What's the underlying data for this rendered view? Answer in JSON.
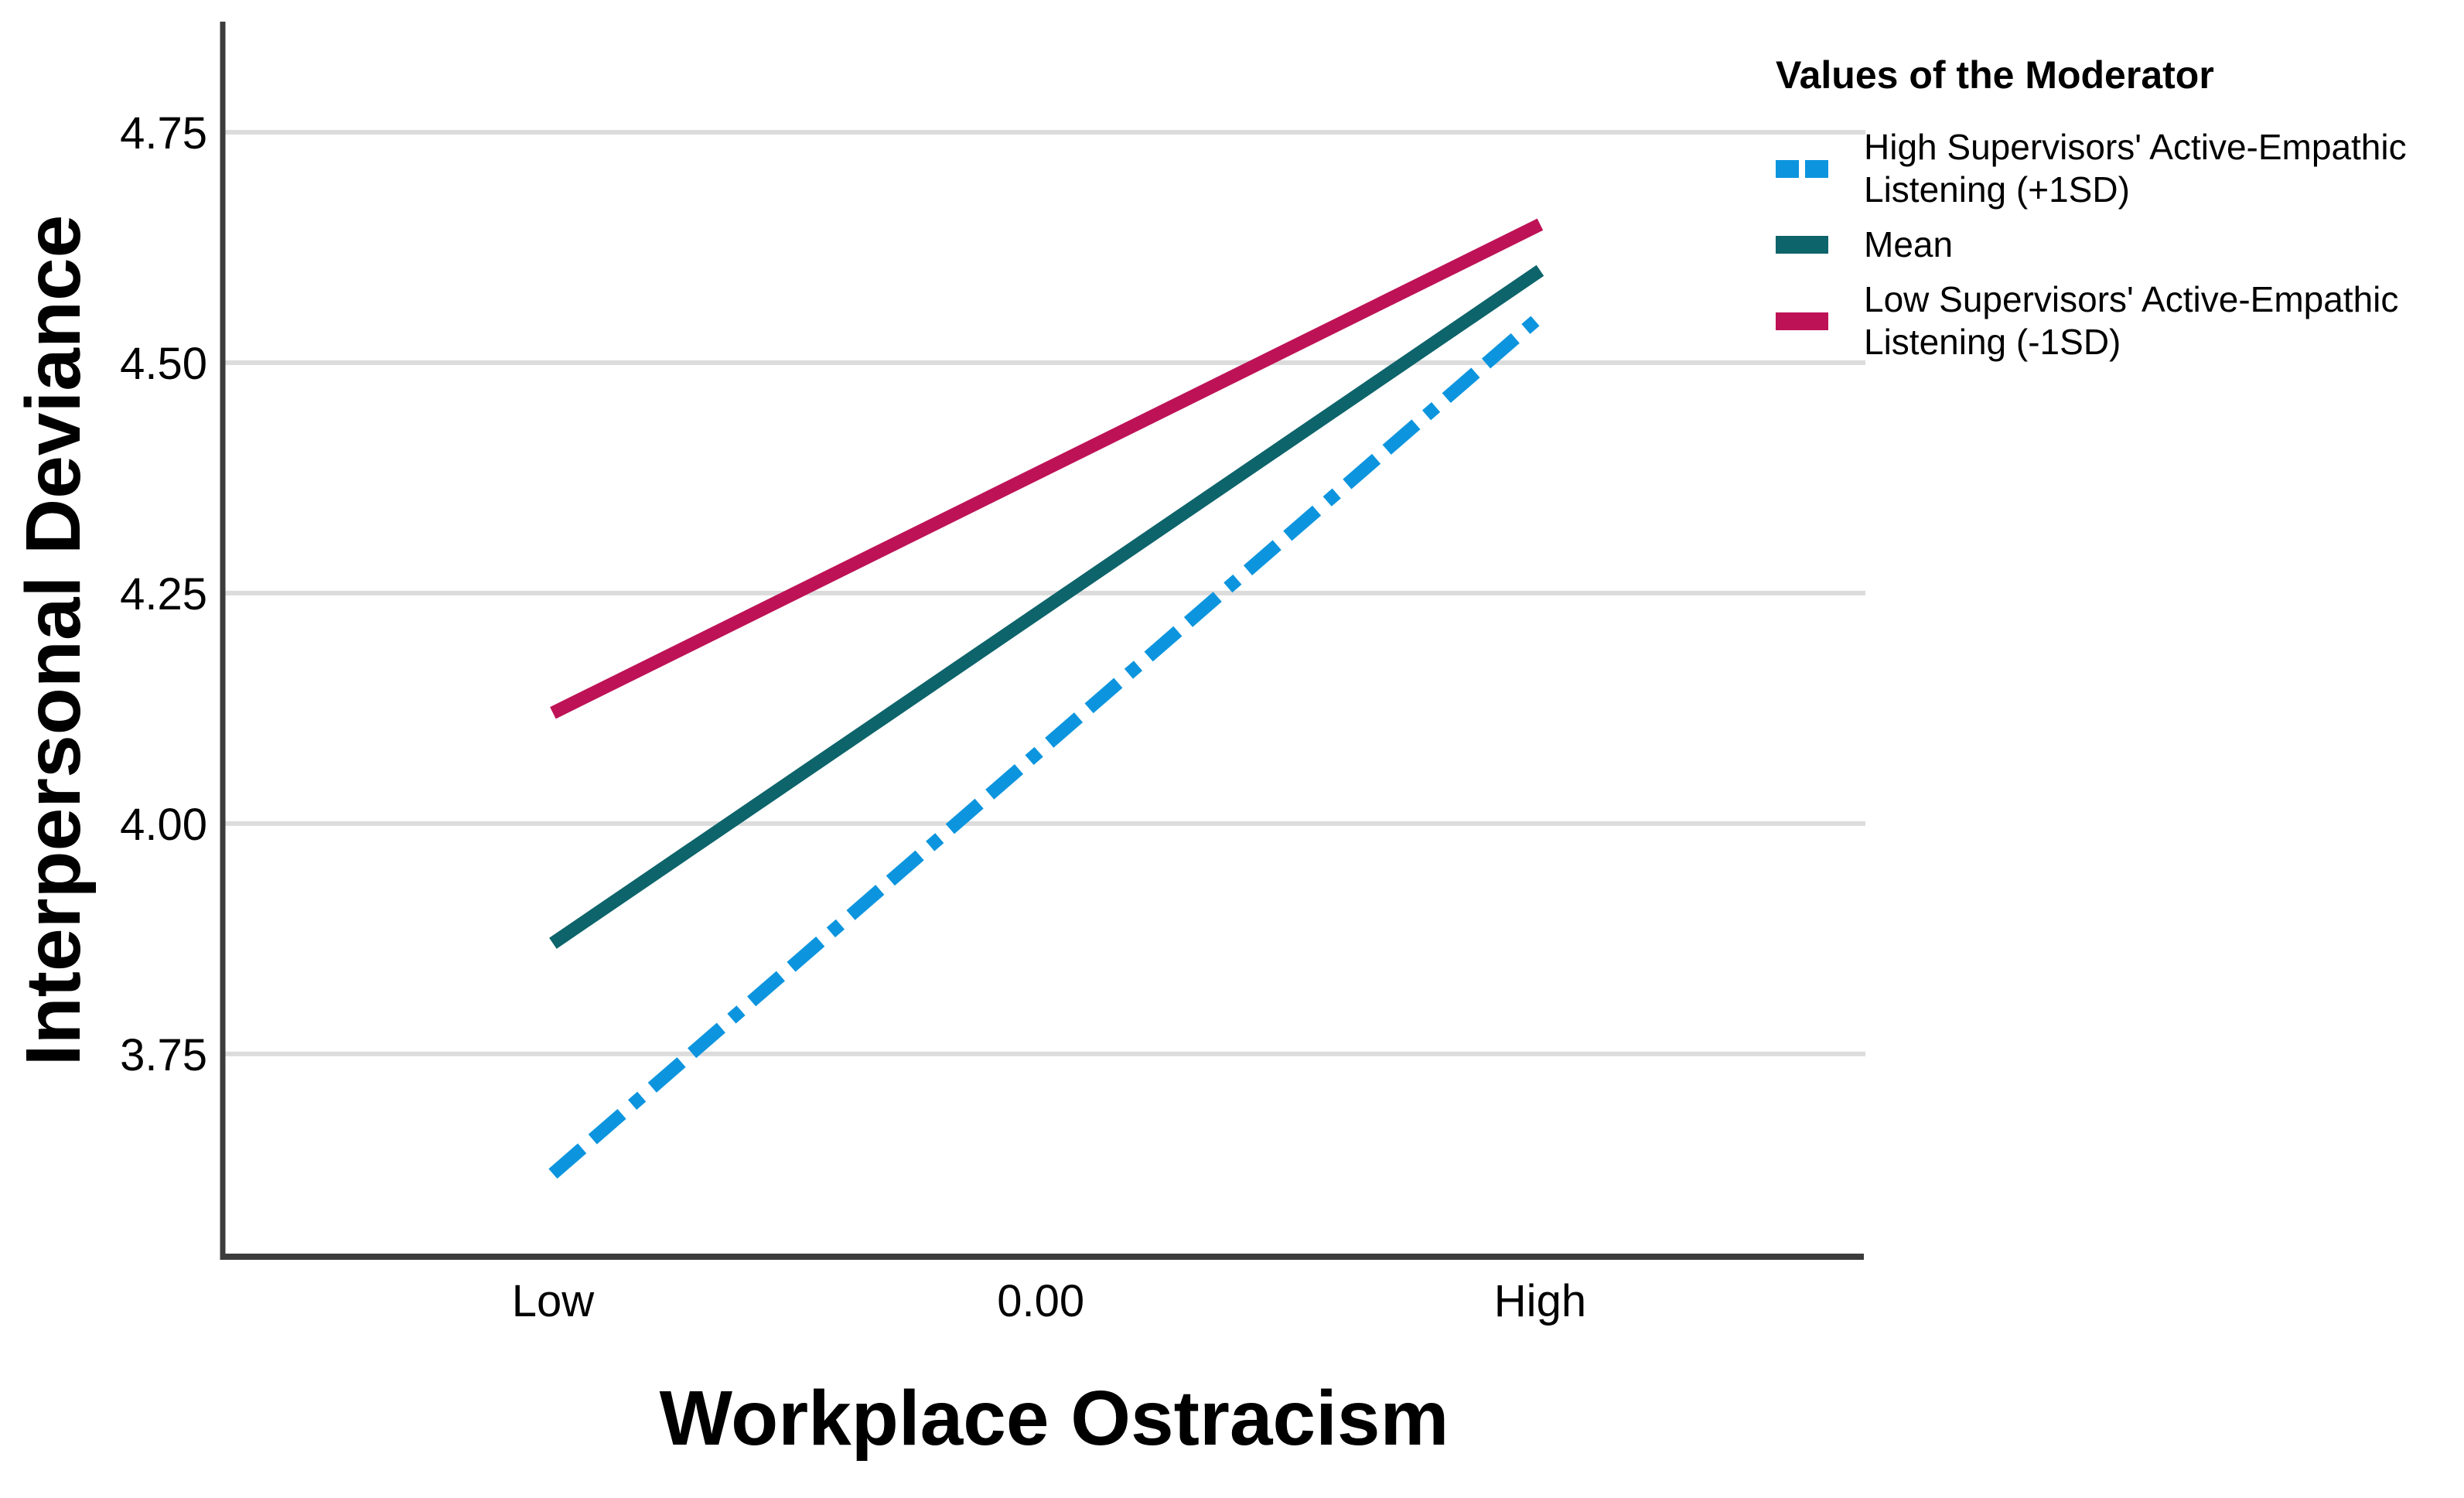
{
  "chart_data": {
    "type": "line",
    "title": "",
    "xlabel": "Workplace Ostracism",
    "ylabel": "Interpersonal Deviance",
    "categories": [
      "Low",
      "0.00",
      "High"
    ],
    "yticks": [
      3.75,
      4.0,
      4.25,
      4.5,
      4.75
    ],
    "ytick_labels": [
      "3.75",
      "4.00",
      "4.25",
      "4.50",
      "4.75"
    ],
    "ylim": [
      3.53,
      4.87
    ],
    "grid": "horizontal-only",
    "legend_position": "top-right-outside",
    "series": [
      {
        "name": "High Supervisors' Active-Empathic Listening (+1SD)",
        "legend_lines": [
          "High Supervisors' Active-Empathic",
          "Listening (+1SD)"
        ],
        "color": "#0C95DE",
        "line_style": "dash-dash-dot",
        "x": [
          "Low",
          "High"
        ],
        "values": [
          3.62,
          4.55
        ]
      },
      {
        "name": "Mean",
        "legend_lines": [
          "Mean"
        ],
        "color": "#0D646B",
        "line_style": "solid",
        "x": [
          "Low",
          "High"
        ],
        "values": [
          3.87,
          4.6
        ]
      },
      {
        "name": "Low Supervisors' Active-Empathic Listening (-1SD)",
        "legend_lines": [
          "Low Supervisors' Active-Empathic",
          "Listening (-1SD)"
        ],
        "color": "#BE1256",
        "line_style": "solid",
        "x": [
          "Low",
          "High"
        ],
        "values": [
          4.12,
          4.65
        ]
      }
    ]
  },
  "legend": {
    "title": "Values of the Moderator"
  },
  "colors": {
    "background": "#FFFFFF",
    "gridline": "#DCDCDC",
    "axis": "#3C3C3C",
    "text": "#000000",
    "series_blue": "#0C95DE",
    "series_teal": "#0D646B",
    "series_crimson": "#BE1256"
  }
}
